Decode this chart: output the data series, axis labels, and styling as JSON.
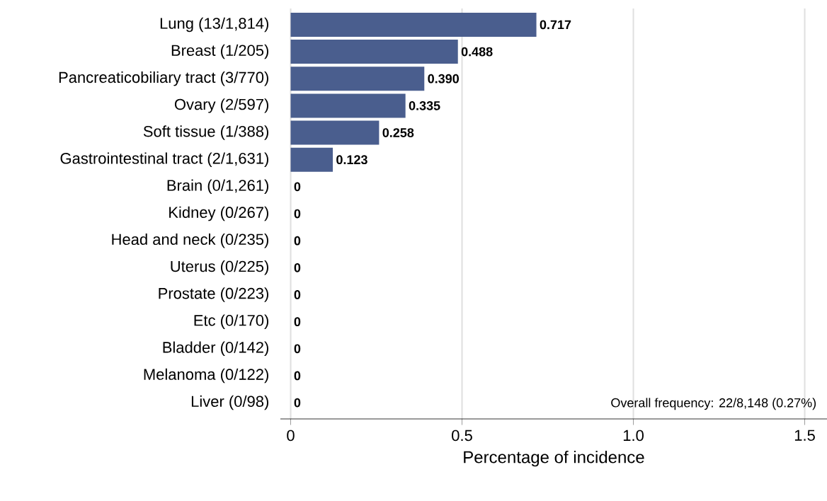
{
  "chart_data": {
    "type": "bar",
    "orientation": "horizontal",
    "xlabel": "Percentage of incidence",
    "categories": [
      "Lung (13/1,814)",
      "Breast (1/205)",
      "Pancreaticobiliary tract (3/770)",
      "Ovary (2/597)",
      "Soft tissue (1/388)",
      "Gastrointestinal tract (2/1,631)",
      "Brain (0/1,261)",
      "Kidney (0/267)",
      "Head and neck (0/235)",
      "Uterus (0/225)",
      "Prostate (0/223)",
      "Etc (0/170)",
      "Bladder (0/142)",
      "Melanoma (0/122)",
      "Liver (0/98)"
    ],
    "values": [
      0.717,
      0.488,
      0.39,
      0.335,
      0.258,
      0.123,
      0,
      0,
      0,
      0,
      0,
      0,
      0,
      0,
      0
    ],
    "value_labels": [
      "0.717",
      "0.488",
      "0.390",
      "0.335",
      "0.258",
      "0.123",
      "0",
      "0",
      "0",
      "0",
      "0",
      "0",
      "0",
      "0",
      "0"
    ],
    "color": "#4a5e8e",
    "xlim": [
      -0.03,
      1.565
    ],
    "xticks": [
      0,
      0.5,
      {
        "value": 1.0,
        "label": "1.0"
      },
      {
        "value": 1.5,
        "label": "1.5"
      }
    ],
    "grid": "x",
    "annotations": [
      "Overall frequency: 22/8,148 (0.27%)"
    ]
  }
}
